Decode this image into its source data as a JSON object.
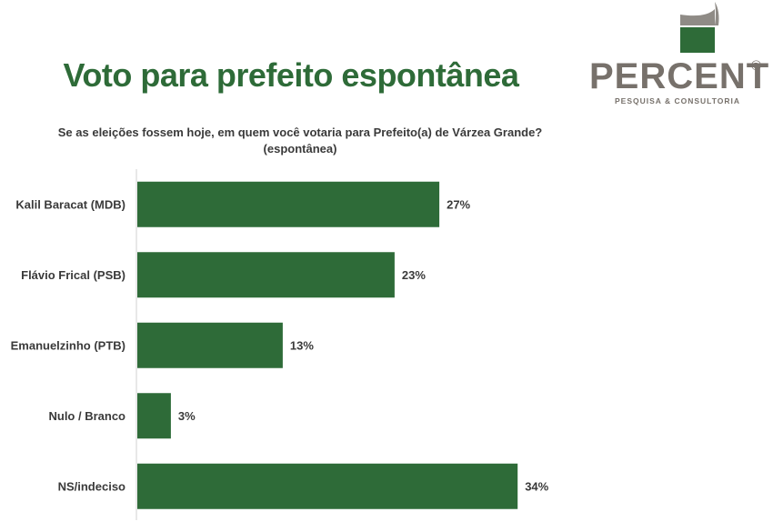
{
  "header": {
    "title": "Voto para prefeito espontânea",
    "question_line1": "Se as eleições fossem hoje, em quem você votaria para Prefeito(a) de Várzea Grande?",
    "question_line2": "(espontânea)"
  },
  "logo": {
    "word": "PERCENT",
    "registered": "®",
    "tagline": "PESQUISA & CONSULTORIA",
    "mark_colors": [
      "#8f8b86",
      "#2e6b38"
    ]
  },
  "colors": {
    "bar": "#2e6b38",
    "title": "#2e6b38",
    "text": "#3a3a3a",
    "axis": "#d0d0d0"
  },
  "chart_data": {
    "type": "bar",
    "orientation": "horizontal",
    "title": "Voto para prefeito espontânea",
    "categories": [
      "Kalil Baracat (MDB)",
      "Flávio Frical (PSB)",
      "Emanuelzinho (PTB)",
      "Nulo / Branco",
      "NS/indeciso"
    ],
    "values": [
      27,
      23,
      13,
      3,
      34
    ],
    "value_labels": [
      "27%",
      "23%",
      "13%",
      "3%",
      "34%"
    ],
    "unit": "%",
    "xlim": [
      0,
      100
    ],
    "grid": false,
    "legend": "none"
  }
}
